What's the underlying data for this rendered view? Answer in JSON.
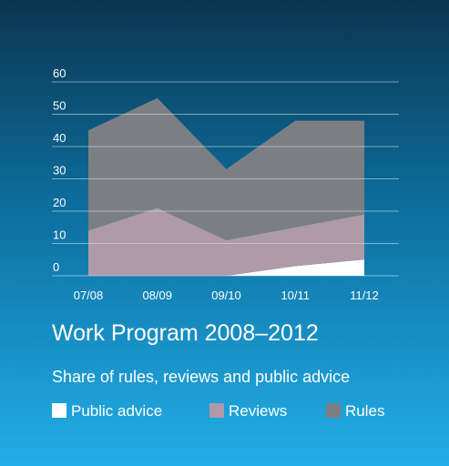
{
  "chart_data": {
    "type": "stacked_area",
    "title": "Work Program 2008–2012",
    "subtitle": "Share of rules, reviews and public advice",
    "categories": [
      "07/08",
      "08/09",
      "09/10",
      "10/11",
      "11/12"
    ],
    "series": [
      {
        "name": "Public advice",
        "color": "#ffffff",
        "values": [
          0,
          0,
          0,
          3,
          5
        ]
      },
      {
        "name": "Reviews",
        "color": "#ae9aa8",
        "values": [
          14,
          21,
          11,
          12,
          14
        ]
      },
      {
        "name": "Rules",
        "color": "#7b7f83",
        "values": [
          31,
          34,
          22,
          33,
          29
        ]
      }
    ],
    "ylim": [
      0,
      60
    ],
    "yticks": [
      0,
      10,
      20,
      30,
      40,
      50,
      60
    ],
    "grid": true
  }
}
